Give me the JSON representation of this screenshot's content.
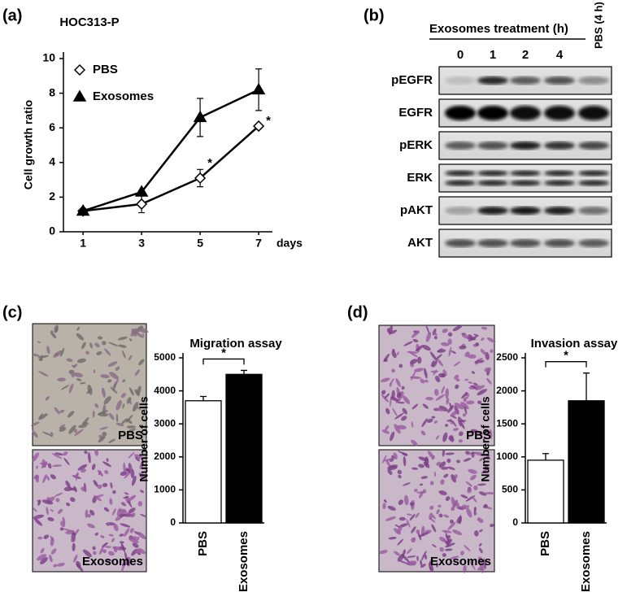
{
  "panels": {
    "a": "(a)",
    "b": "(b)",
    "c": "(c)",
    "d": "(d)"
  },
  "blot": {
    "title": "Exosomes treatment (h)",
    "lanes": [
      "0",
      "1",
      "2",
      "4",
      "PBS (4 h)"
    ],
    "rows": [
      "pEGFR",
      "EGFR",
      "pERK",
      "ERK",
      "pAKT",
      "AKT"
    ]
  },
  "micrographs": {
    "c": [
      "PBS",
      "Exosomes"
    ],
    "d": [
      "PBS",
      "Exosomes"
    ]
  },
  "chart_data": [
    {
      "type": "line",
      "title": "HOC313-P",
      "ylabel": "Cell growth ratio",
      "xlabel": "days",
      "x": [
        1,
        3,
        5,
        7
      ],
      "xlim": [
        0.33,
        7.47
      ],
      "xticks": [
        1,
        3,
        5,
        7
      ],
      "ylim": [
        0,
        10
      ],
      "yticks": [
        0,
        2,
        4,
        6,
        8,
        10
      ],
      "legend": "upper left",
      "series": [
        {
          "name": "PBS",
          "color": "#000000",
          "marker": "diamond",
          "marker_fill": "#ffffff",
          "values": [
            1.2,
            1.6,
            3.1,
            6.1
          ],
          "errors": [
            0,
            0.5,
            0.5,
            0
          ]
        },
        {
          "name": "Exosomes",
          "color": "#000000",
          "marker": "triangle",
          "marker_fill": "#000000",
          "values": [
            1.2,
            2.3,
            6.6,
            8.2
          ],
          "errors": [
            0,
            0,
            1.1,
            1.2
          ]
        }
      ],
      "annotations": [
        "*",
        "*"
      ]
    },
    {
      "type": "bar",
      "title": "Migration assay",
      "ylabel": "Number of  cells",
      "categories": [
        "PBS",
        "Exosomes"
      ],
      "values": [
        3700,
        4500
      ],
      "errors": [
        130,
        120
      ],
      "colors": [
        "#ffffff",
        "#000000"
      ],
      "ylim": [
        0,
        5000
      ],
      "yticks": [
        0,
        1000,
        2000,
        3000,
        4000,
        5000
      ],
      "annotations": [
        "*"
      ]
    },
    {
      "type": "bar",
      "title": "Invasion assay",
      "ylabel": "Number of  cells",
      "categories": [
        "PBS",
        "Exosomes"
      ],
      "values": [
        950,
        1850
      ],
      "errors": [
        100,
        420
      ],
      "colors": [
        "#ffffff",
        "#000000"
      ],
      "ylim": [
        0,
        2500
      ],
      "yticks": [
        0,
        500,
        1000,
        1500,
        2000,
        2500
      ],
      "annotations": [
        "*"
      ]
    }
  ]
}
